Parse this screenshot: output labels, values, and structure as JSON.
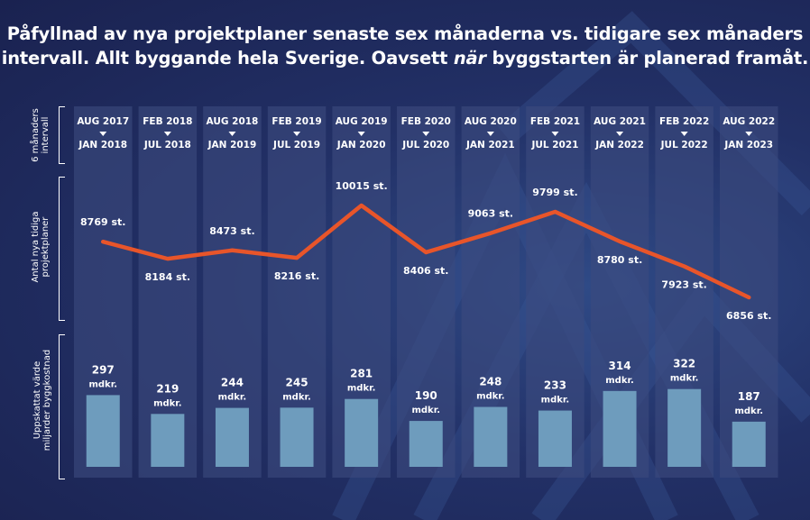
{
  "title": {
    "line1": "Påfyllnad av nya projektplaner senaste sex månaderna vs. tidigare sex månaders",
    "line2_a": "intervall. Allt byggande hela Sverige. Oavsett ",
    "line2_em": "när",
    "line2_b": " byggstarten är planerad framåt."
  },
  "row_labels": {
    "interval": [
      "6 månaders",
      "intervall"
    ],
    "projects": [
      "Antal nya tidiga",
      "projektplaner"
    ],
    "value": [
      "Uppskattat värde",
      "miljarder byggkostnad"
    ]
  },
  "colors": {
    "background": "#1f2a5e",
    "column": "#3c4a7e",
    "line": "#e8552a",
    "bar": "#6e9cbd",
    "text": "#ffffff"
  },
  "chart_data": {
    "type": "line+bar",
    "title": "Påfyllnad av nya projektplaner senaste sex månaderna vs. tidigare sex månaders intervall. Allt byggande hela Sverige. Oavsett när byggstarten är planerad framåt.",
    "periods": [
      {
        "start": "AUG 2017",
        "end": "JAN 2018"
      },
      {
        "start": "FEB 2018",
        "end": "JUL 2018"
      },
      {
        "start": "AUG 2018",
        "end": "JAN 2019"
      },
      {
        "start": "FEB 2019",
        "end": "JUL 2019"
      },
      {
        "start": "AUG 2019",
        "end": "JAN 2020"
      },
      {
        "start": "FEB 2020",
        "end": "JUL 2020"
      },
      {
        "start": "AUG 2020",
        "end": "JAN 2021"
      },
      {
        "start": "FEB 2021",
        "end": "JUL 2021"
      },
      {
        "start": "AUG 2021",
        "end": "JAN 2022"
      },
      {
        "start": "FEB 2022",
        "end": "JUL 2022"
      },
      {
        "start": "AUG 2022",
        "end": "JAN 2023"
      }
    ],
    "series": [
      {
        "name": "Antal nya tidiga projektplaner",
        "type": "line",
        "unit": "st.",
        "values": [
          8769,
          8184,
          8473,
          8216,
          10015,
          8406,
          9063,
          9799,
          8780,
          7923,
          6856
        ],
        "label_side": [
          "above",
          "below",
          "above",
          "below",
          "above",
          "below",
          "above",
          "above",
          "below",
          "below",
          "below"
        ]
      },
      {
        "name": "Uppskattat värde miljarder byggkostnad",
        "type": "bar",
        "unit": "mdkr.",
        "values": [
          297,
          219,
          244,
          245,
          281,
          190,
          248,
          233,
          314,
          322,
          187
        ]
      }
    ]
  }
}
